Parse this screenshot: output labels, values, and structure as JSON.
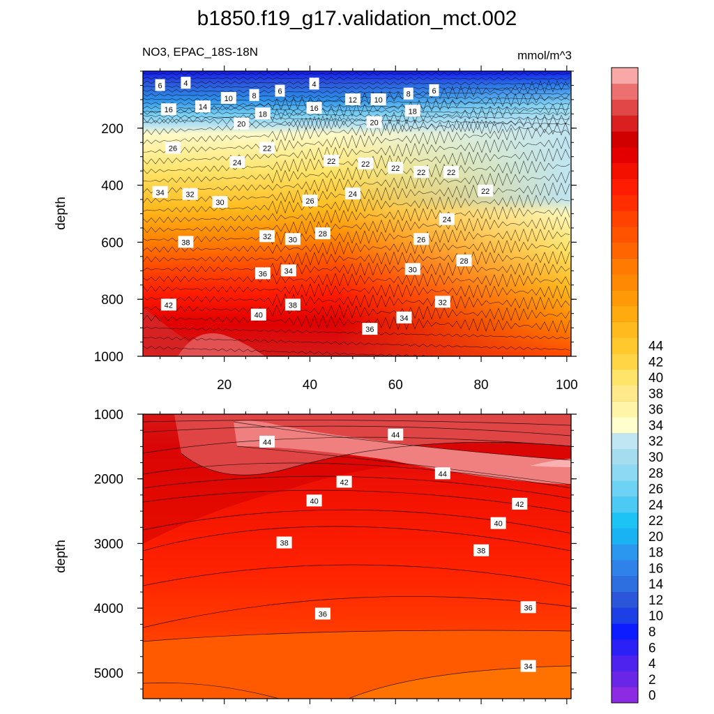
{
  "chart_data": {
    "type": "contour",
    "title": "b1850.f19_g17.validation_mct.002",
    "subtitle_left": "NO3, EPAC_18S-18N",
    "units": "mmol/m^3",
    "panels": [
      {
        "name": "upper",
        "xlabel": "",
        "ylabel": "depth",
        "xlim": [
          1,
          101
        ],
        "ylim": [
          1000,
          0
        ],
        "xticks": [
          "20",
          "40",
          "60",
          "80",
          "100"
        ],
        "yticks": [
          "200",
          "400",
          "600",
          "800",
          "1000"
        ],
        "ytick_values": [
          200,
          400,
          600,
          800,
          1000
        ],
        "contour_labels": [
          {
            "text": "6",
            "x": 5,
            "y": 50
          },
          {
            "text": "4",
            "x": 11,
            "y": 42
          },
          {
            "text": "10",
            "x": 21,
            "y": 95
          },
          {
            "text": "8",
            "x": 27,
            "y": 85
          },
          {
            "text": "6",
            "x": 33,
            "y": 70
          },
          {
            "text": "4",
            "x": 41,
            "y": 45
          },
          {
            "text": "12",
            "x": 50,
            "y": 100
          },
          {
            "text": "10",
            "x": 56,
            "y": 100
          },
          {
            "text": "8",
            "x": 63,
            "y": 80
          },
          {
            "text": "6",
            "x": 69,
            "y": 68
          },
          {
            "text": "16",
            "x": 7,
            "y": 135
          },
          {
            "text": "14",
            "x": 15,
            "y": 125
          },
          {
            "text": "16",
            "x": 41,
            "y": 130
          },
          {
            "text": "18",
            "x": 29,
            "y": 150
          },
          {
            "text": "18",
            "x": 64,
            "y": 140
          },
          {
            "text": "20",
            "x": 24,
            "y": 185
          },
          {
            "text": "20",
            "x": 55,
            "y": 180
          },
          {
            "text": "22",
            "x": 30,
            "y": 270
          },
          {
            "text": "26",
            "x": 8,
            "y": 270
          },
          {
            "text": "24",
            "x": 23,
            "y": 320
          },
          {
            "text": "22",
            "x": 45,
            "y": 315
          },
          {
            "text": "22",
            "x": 53,
            "y": 325
          },
          {
            "text": "22",
            "x": 60,
            "y": 340
          },
          {
            "text": "22",
            "x": 66,
            "y": 355
          },
          {
            "text": "22",
            "x": 73,
            "y": 355
          },
          {
            "text": "34",
            "x": 5,
            "y": 425
          },
          {
            "text": "32",
            "x": 12,
            "y": 432
          },
          {
            "text": "30",
            "x": 19,
            "y": 460
          },
          {
            "text": "26",
            "x": 40,
            "y": 455
          },
          {
            "text": "24",
            "x": 50,
            "y": 430
          },
          {
            "text": "22",
            "x": 81,
            "y": 420
          },
          {
            "text": "24",
            "x": 72,
            "y": 520
          },
          {
            "text": "38",
            "x": 11,
            "y": 600
          },
          {
            "text": "32",
            "x": 30,
            "y": 580
          },
          {
            "text": "30",
            "x": 36,
            "y": 590
          },
          {
            "text": "28",
            "x": 43,
            "y": 570
          },
          {
            "text": "26",
            "x": 66,
            "y": 590
          },
          {
            "text": "28",
            "x": 76,
            "y": 665
          },
          {
            "text": "36",
            "x": 29,
            "y": 710
          },
          {
            "text": "34",
            "x": 35,
            "y": 700
          },
          {
            "text": "30",
            "x": 64,
            "y": 695
          },
          {
            "text": "42",
            "x": 7,
            "y": 820
          },
          {
            "text": "38",
            "x": 36,
            "y": 820
          },
          {
            "text": "40",
            "x": 28,
            "y": 855
          },
          {
            "text": "32",
            "x": 71,
            "y": 810
          },
          {
            "text": "34",
            "x": 62,
            "y": 865
          },
          {
            "text": "36",
            "x": 54,
            "y": 905
          }
        ]
      },
      {
        "name": "lower",
        "xlabel": "",
        "ylabel": "depth",
        "xlim": [
          1,
          101
        ],
        "ylim": [
          5400,
          1000
        ],
        "xticks": [],
        "yticks": [
          "1000",
          "2000",
          "3000",
          "4000",
          "5000"
        ],
        "ytick_values": [
          1000,
          2000,
          3000,
          4000,
          5000
        ],
        "contour_labels": [
          {
            "text": "44",
            "x": 30,
            "y": 1430
          },
          {
            "text": "44",
            "x": 60,
            "y": 1320
          },
          {
            "text": "44",
            "x": 71,
            "y": 1920
          },
          {
            "text": "42",
            "x": 48,
            "y": 2050
          },
          {
            "text": "42",
            "x": 89,
            "y": 2390
          },
          {
            "text": "40",
            "x": 41,
            "y": 2340
          },
          {
            "text": "40",
            "x": 84,
            "y": 2690
          },
          {
            "text": "38",
            "x": 34,
            "y": 2990
          },
          {
            "text": "38",
            "x": 80,
            "y": 3110
          },
          {
            "text": "36",
            "x": 43,
            "y": 4090
          },
          {
            "text": "36",
            "x": 91,
            "y": 3990
          },
          {
            "text": "34",
            "x": 91,
            "y": 4900
          }
        ]
      }
    ],
    "colorbar": {
      "levels": [
        0,
        2,
        4,
        6,
        8,
        10,
        12,
        14,
        16,
        18,
        20,
        22,
        24,
        26,
        28,
        30,
        32,
        34,
        36,
        38,
        40,
        42,
        44
      ],
      "colors": [
        "#8c2be2",
        "#6a26e6",
        "#4f23ee",
        "#2b21f7",
        "#0d1cff",
        "#1c3fe6",
        "#2b56d9",
        "#2d6ee0",
        "#2e82ea",
        "#2c97ef",
        "#19b2f2",
        "#1ec3f5",
        "#4ccaf4",
        "#6dd2f3",
        "#8dd8f2",
        "#a5dcf0",
        "#bfe6f2",
        "#ffffcd",
        "#fff4a8",
        "#ffe98a",
        "#ffe46a",
        "#ffd546",
        "#ffc92e",
        "#ffbb1e",
        "#ffab10",
        "#ff9a06",
        "#ff8903",
        "#ff7a00",
        "#ff6500",
        "#ff5300",
        "#ff4200",
        "#ff2d00",
        "#ff1c00",
        "#f41000",
        "#e40000",
        "#d00000",
        "#d91f1f",
        "#e14747",
        "#ec7070",
        "#f9a8a8"
      ],
      "tick_labels": [
        "0",
        "2",
        "4",
        "6",
        "8",
        "10",
        "12",
        "14",
        "16",
        "18",
        "20",
        "22",
        "24",
        "26",
        "28",
        "30",
        "32",
        "34",
        "36",
        "38",
        "40",
        "42",
        "44"
      ]
    }
  }
}
